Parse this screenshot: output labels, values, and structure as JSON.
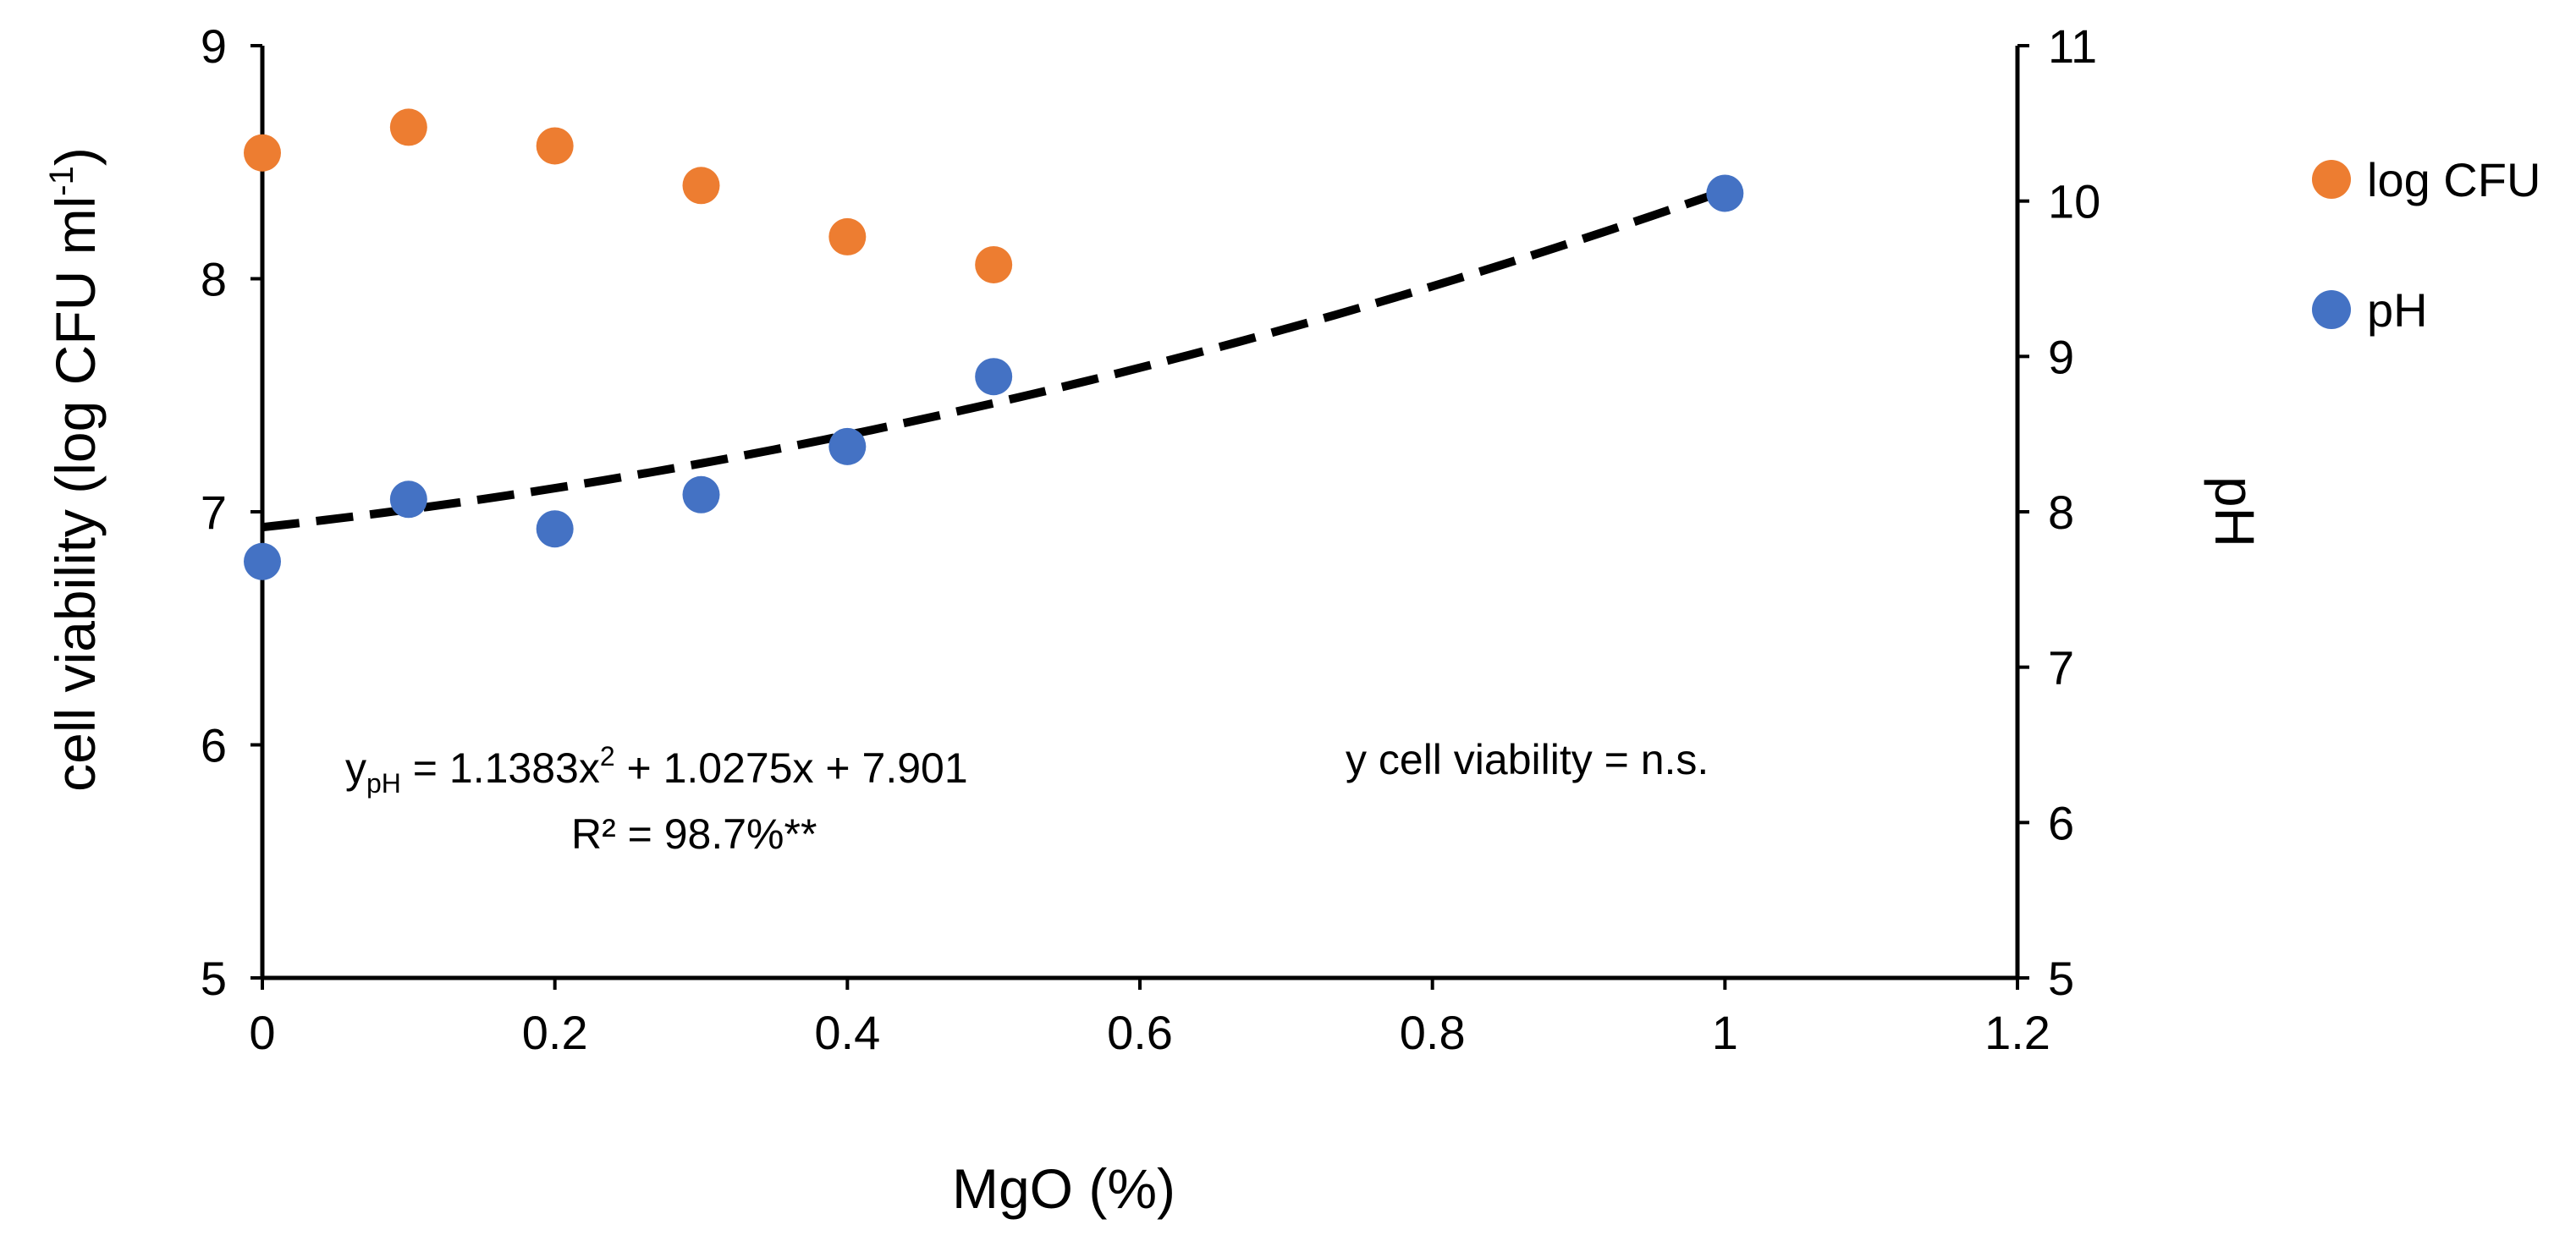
{
  "chart_data": {
    "type": "scatter",
    "xlabel": "MgO (%)",
    "ylabel_left_main": "cell viability (log CFU ml",
    "ylabel_left_sup": "-1",
    "ylabel_left_close": ")",
    "ylabel_right": "pH",
    "xlim": [
      0,
      1.2
    ],
    "xticks": [
      0,
      0.2,
      0.4,
      0.6,
      0.8,
      1,
      1.2
    ],
    "xtick_labels": [
      "0",
      "0.2",
      "0.4",
      "0.6",
      "0.8",
      "1",
      "1.2"
    ],
    "ylim_left": [
      5,
      9
    ],
    "yticks_left": [
      5,
      6,
      7,
      8,
      9
    ],
    "ytick_labels_left": [
      "5",
      "6",
      "7",
      "8",
      "9"
    ],
    "ylim_right": [
      5,
      11
    ],
    "yticks_right": [
      5,
      6,
      7,
      8,
      9,
      10,
      11
    ],
    "ytick_labels_right": [
      "5",
      "6",
      "7",
      "8",
      "9",
      "10",
      "11"
    ],
    "series": [
      {
        "name": "log CFU",
        "axis": "left",
        "color": "#ED7D31",
        "x": [
          0,
          0.1,
          0.2,
          0.3,
          0.4,
          0.5
        ],
        "y": [
          8.54,
          8.65,
          8.57,
          8.4,
          8.18,
          8.06
        ]
      },
      {
        "name": "pH",
        "axis": "right",
        "color": "#4472C4",
        "x": [
          0,
          0.1,
          0.2,
          0.3,
          0.4,
          0.5,
          1
        ],
        "y": [
          7.68,
          8.08,
          7.89,
          8.11,
          8.42,
          8.87,
          10.05
        ]
      }
    ],
    "trendline": {
      "series": "pH",
      "type": "polynomial",
      "coefficients": [
        1.1383,
        1.0275,
        7.901
      ],
      "x_range": [
        0,
        1
      ],
      "style": "dashed",
      "color": "#000000"
    },
    "legend": {
      "position": "right",
      "entries": [
        "log CFU",
        "pH"
      ]
    },
    "annotations": {
      "equation_prefix": "y",
      "equation_sub": "pH",
      "equation_part1": " = 1.1383x",
      "equation_sup": "2",
      "equation_part2": " + 1.0275x + 7.901",
      "r_squared": "R² = 98.7%**",
      "cell_viability_note": "y cell viability = n.s."
    }
  }
}
